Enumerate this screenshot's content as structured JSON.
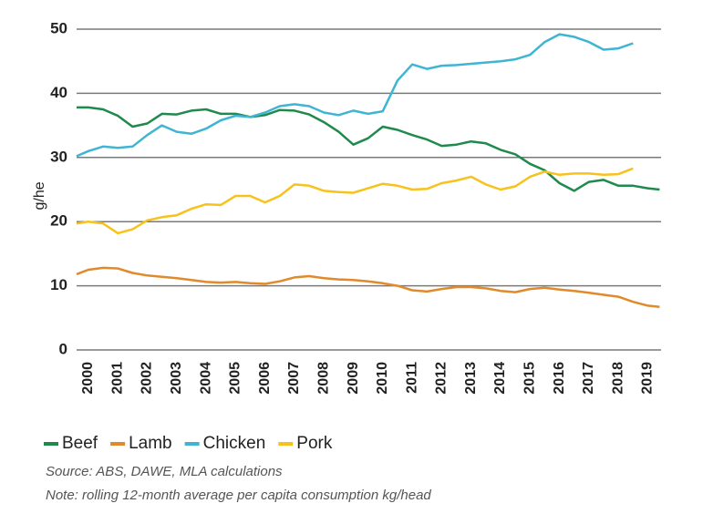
{
  "chart_data": {
    "type": "line",
    "y_label": "kg/head",
    "x": [
      1999.6,
      2000.0,
      2000.5,
      2001.0,
      2001.5,
      2002.0,
      2002.5,
      2003.0,
      2003.5,
      2004.0,
      2004.5,
      2005.0,
      2005.5,
      2006.0,
      2006.5,
      2007.0,
      2007.5,
      2008.0,
      2008.5,
      2009.0,
      2009.5,
      2010.0,
      2010.5,
      2011.0,
      2011.5,
      2012.0,
      2012.5,
      2013.0,
      2013.5,
      2014.0,
      2014.5,
      2015.0,
      2015.5,
      2016.0,
      2016.5,
      2017.0,
      2017.5,
      2018.0,
      2018.5,
      2019.0,
      2019.4
    ],
    "series": [
      {
        "name": "Beef",
        "color": "#1f8a4c",
        "values": [
          37.8,
          37.8,
          37.5,
          36.5,
          34.8,
          35.3,
          36.8,
          36.7,
          37.3,
          37.5,
          36.8,
          36.8,
          36.3,
          36.6,
          37.4,
          37.3,
          36.7,
          35.5,
          34,
          32,
          33,
          34.8,
          34.3,
          33.5,
          32.8,
          31.8,
          32,
          32.5,
          32.2,
          31.2,
          30.5,
          29,
          28,
          26,
          24.8,
          26.2,
          26.5,
          25.6,
          25.6,
          25.2,
          25
        ]
      },
      {
        "name": "Lamb",
        "color": "#e08a2c",
        "values": [
          11.8,
          12.5,
          12.8,
          12.7,
          12,
          11.6,
          11.4,
          11.2,
          10.9,
          10.6,
          10.5,
          10.6,
          10.4,
          10.3,
          10.7,
          11.3,
          11.5,
          11.2,
          11,
          10.9,
          10.7,
          10.4,
          10,
          9.3,
          9.1,
          9.5,
          9.8,
          9.8,
          9.6,
          9.2,
          9,
          9.5,
          9.7,
          9.4,
          9.2,
          8.9,
          8.6,
          8.3,
          7.5,
          6.9,
          6.7
        ]
      },
      {
        "name": "Chicken",
        "color": "#3fb5d3",
        "values": [
          30.2,
          31,
          31.7,
          31.5,
          31.7,
          33.5,
          35,
          34,
          33.7,
          34.5,
          35.8,
          36.5,
          36.3,
          37,
          38,
          38.3,
          38,
          37,
          36.6,
          37.3,
          36.8,
          37.2,
          42,
          44.5,
          43.8,
          44.3,
          44.4,
          44.6,
          44.8,
          45,
          45.3,
          46,
          48,
          49.2,
          48.8,
          48,
          46.8,
          47,
          47.8,
          null,
          null
        ]
      },
      {
        "name": "Pork",
        "color": "#f7c21c",
        "values": [
          19.7,
          20,
          19.7,
          18.2,
          18.8,
          20.2,
          20.7,
          21,
          22,
          22.7,
          22.6,
          24,
          24,
          23,
          24,
          25.8,
          25.6,
          24.8,
          24.6,
          24.5,
          25.2,
          25.9,
          25.6,
          25,
          25.1,
          26,
          26.4,
          27,
          25.8,
          25,
          25.5,
          27,
          27.8,
          27.3,
          27.5,
          27.5,
          27.3,
          27.4,
          28.3,
          null,
          null
        ]
      }
    ],
    "xlim": [
      1999.6,
      2019.45
    ],
    "xticks": [
      2000,
      2001,
      2002,
      2003,
      2004,
      2005,
      2006,
      2007,
      2008,
      2009,
      2010,
      2011,
      2012,
      2013,
      2014,
      2015,
      2016,
      2017,
      2018,
      2019
    ],
    "ylim": [
      0,
      50
    ],
    "yticks": [
      0,
      10,
      20,
      30,
      40,
      50
    ],
    "grid": true,
    "source": "Source: ABS, DAWE, MLA calculations",
    "note": "Note: rolling 12-month average per capita consumption kg/head"
  }
}
